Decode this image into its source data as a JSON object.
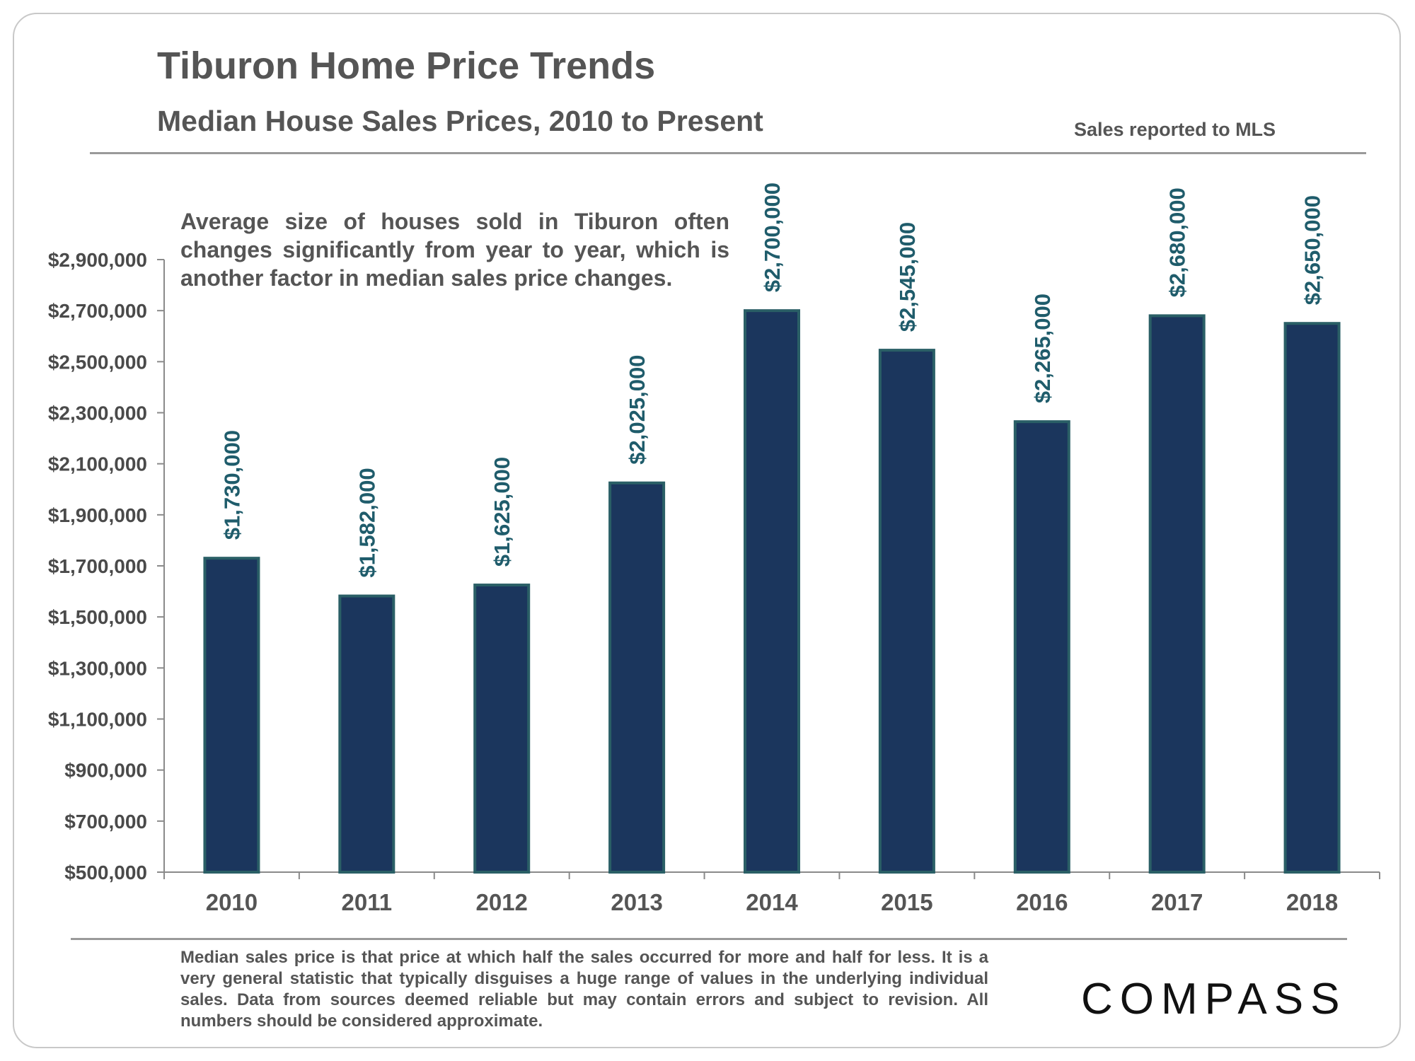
{
  "header": {
    "title": "Tiburon Home Price Trends",
    "subtitle": "Median House Sales Prices, 2010 to Present",
    "source": "Sales reported to MLS"
  },
  "annotation": "Average size of houses sold in Tiburon often changes significantly from year to year, which is another factor in median sales price changes.",
  "footnote": "Median sales price is that price at which half the sales occurred for more and half for less. It is a very general statistic that typically disguises a huge range of values in the underlying individual sales. Data from sources deemed reliable but may contain errors and subject to revision. All numbers should be considered approximate.",
  "logo": {
    "text": "COMPASS"
  },
  "colors": {
    "bar_fill": "#1b365d",
    "bar_stroke": "#2a5f66",
    "label": "#1f5c6b",
    "text": "#555555"
  },
  "chart_data": {
    "type": "bar",
    "title": "Tiburon Home Price Trends",
    "subtitle": "Median House Sales Prices, 2010 to Present",
    "xlabel": "",
    "ylabel": "",
    "categories": [
      "2010",
      "2011",
      "2012",
      "2013",
      "2014",
      "2015",
      "2016",
      "2017",
      "2018"
    ],
    "values": [
      1730000,
      1582000,
      1625000,
      2025000,
      2700000,
      2545000,
      2265000,
      2680000,
      2650000
    ],
    "data_labels": [
      "$1,730,000",
      "$1,582,000",
      "$1,625,000",
      "$2,025,000",
      "$2,700,000",
      "$2,545,000",
      "$2,265,000",
      "$2,680,000",
      "$2,650,000"
    ],
    "ylim": [
      500000,
      2900000
    ],
    "yticks": [
      500000,
      700000,
      900000,
      1100000,
      1300000,
      1500000,
      1700000,
      1900000,
      2100000,
      2300000,
      2500000,
      2700000,
      2900000
    ],
    "ytick_labels": [
      "$500,000",
      "$700,000",
      "$900,000",
      "$1,100,000",
      "$1,300,000",
      "$1,500,000",
      "$1,700,000",
      "$1,900,000",
      "$2,100,000",
      "$2,300,000",
      "$2,500,000",
      "$2,700,000",
      "$2,900,000"
    ],
    "grid": false,
    "legend": "none"
  }
}
